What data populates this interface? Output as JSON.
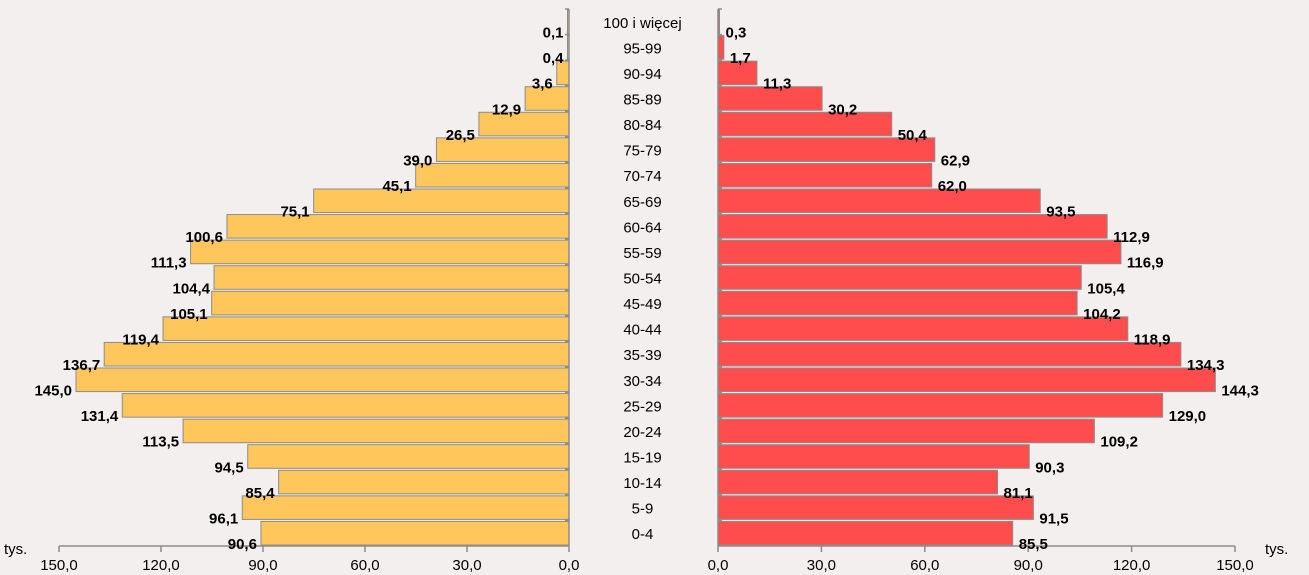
{
  "chart_data": {
    "type": "bar",
    "categories": [
      "100 i więcej",
      "95-99",
      "90-94",
      "85-89",
      "80-84",
      "75-79",
      "70-74",
      "65-69",
      "60-64",
      "55-59",
      "50-54",
      "45-49",
      "40-44",
      "35-39",
      "30-34",
      "25-29",
      "20-24",
      "15-19",
      "10-14",
      "5-9",
      "0-4"
    ],
    "series": [
      {
        "values": [
          0.1,
          0.4,
          3.6,
          12.9,
          26.5,
          39.0,
          45.1,
          75.1,
          100.6,
          111.3,
          104.4,
          105.1,
          119.4,
          136.7,
          145.0,
          131.4,
          113.5,
          94.5,
          85.4,
          96.1,
          90.6
        ],
        "labels": [
          "0,1",
          "0,4",
          "3,6",
          "12,9",
          "26,5",
          "39,0",
          "45,1",
          "75,1",
          "100,6",
          "111,3",
          "104,4",
          "105,1",
          "119,4",
          "136,7",
          "145,0",
          "131,4",
          "113,5",
          "94,5",
          "85,4",
          "96,1",
          "90,6"
        ],
        "color": "#FFC65C",
        "side": "left"
      },
      {
        "values": [
          0.3,
          1.7,
          11.3,
          30.2,
          50.4,
          62.9,
          62.0,
          93.5,
          112.9,
          116.9,
          105.4,
          104.2,
          118.9,
          134.3,
          144.3,
          129.0,
          109.2,
          90.3,
          81.1,
          91.5,
          85.5
        ],
        "labels": [
          "0,3",
          "1,7",
          "11,3",
          "30,2",
          "50,4",
          "62,9",
          "62,0",
          "93,5",
          "112,9",
          "116,9",
          "105,4",
          "104,2",
          "118,9",
          "134,3",
          "144,3",
          "129,0",
          "109,2",
          "90,3",
          "81,1",
          "91,5",
          "85,5"
        ],
        "color": "#FF4D4D",
        "side": "right"
      }
    ],
    "xlim": [
      0,
      150
    ],
    "ticks_left": [
      "150,0",
      "120,0",
      "90,0",
      "60,0",
      "30,0",
      "0,0"
    ],
    "ticks_right": [
      "0,0",
      "30,0",
      "60,0",
      "90,0",
      "120,0",
      "150,0"
    ],
    "unit_label": "tys."
  }
}
